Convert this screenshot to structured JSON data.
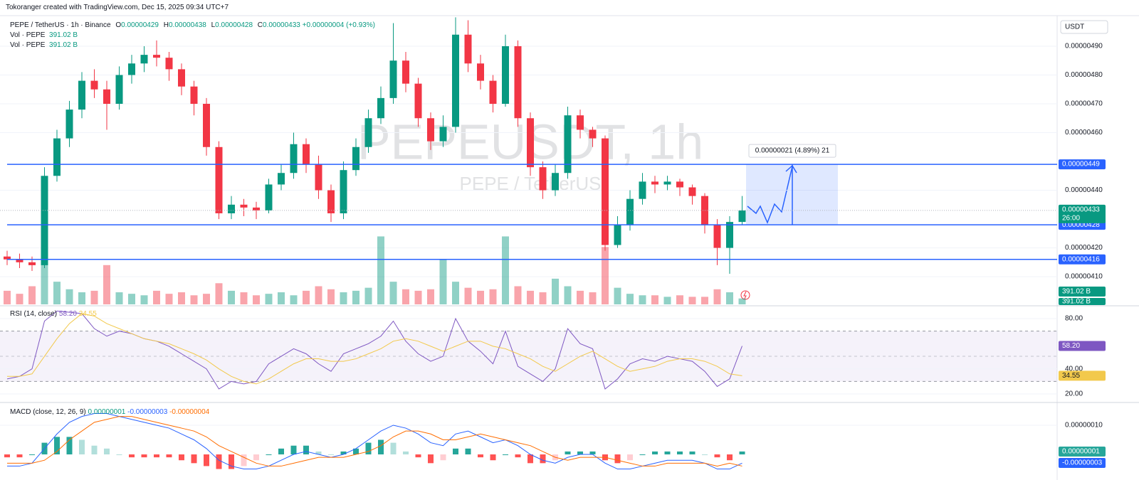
{
  "header": "Tokoranger created with TradingView.com, Dec 15, 2025 09:34 UTC+7",
  "chart_data": [
    {
      "type": "candlestick",
      "currency": "USDT",
      "symbol": "PEPE / TetherUS · 1h · Binance",
      "ohlc_legend": [
        {
          "key": "O",
          "value": "0.00000429"
        },
        {
          "key": "H",
          "value": "0.00000438"
        },
        {
          "key": "L",
          "value": "0.00000428"
        },
        {
          "key": "C",
          "value": "0.00000433"
        }
      ],
      "change": "+0.00000004 (+0.93%)",
      "watermark": {
        "title": "PEPEUSDT, 1h",
        "subtitle": "PEPE / TetherUS"
      },
      "up_color": "#089981",
      "down_color": "#f23645",
      "ylim": [
        4.004e-06,
        5.006e-06
      ],
      "yticks": [
        {
          "value": 4.9e-06,
          "label": "0.00000490"
        },
        {
          "value": 4.8e-06,
          "label": "0.00000480"
        },
        {
          "value": 4.7e-06,
          "label": "0.00000470"
        },
        {
          "value": 4.6e-06,
          "label": "0.00000460"
        },
        {
          "value": 4.4e-06,
          "label": "0.00000440"
        },
        {
          "value": 4.2e-06,
          "label": "0.00000420"
        },
        {
          "value": 4.1e-06,
          "label": "0.00000410"
        }
      ],
      "grid": true,
      "candles": [
        [
          4.17e-06,
          4.19e-06,
          4.14e-06,
          4.16e-06
        ],
        [
          4.16e-06,
          4.18e-06,
          4.13e-06,
          4.15e-06
        ],
        [
          4.15e-06,
          4.17e-06,
          4.12e-06,
          4.14e-06
        ],
        [
          4.14e-06,
          4.48e-06,
          4.13e-06,
          4.45e-06
        ],
        [
          4.45e-06,
          4.61e-06,
          4.43e-06,
          4.58e-06
        ],
        [
          4.58e-06,
          4.71e-06,
          4.55e-06,
          4.68e-06
        ],
        [
          4.68e-06,
          4.81e-06,
          4.65e-06,
          4.78e-06
        ],
        [
          4.78e-06,
          4.82e-06,
          4.72e-06,
          4.75e-06
        ],
        [
          4.75e-06,
          4.78e-06,
          4.61e-06,
          4.7e-06
        ],
        [
          4.7e-06,
          4.83e-06,
          4.68e-06,
          4.8e-06
        ],
        [
          4.8e-06,
          4.87e-06,
          4.77e-06,
          4.84e-06
        ],
        [
          4.84e-06,
          4.9e-06,
          4.81e-06,
          4.87e-06
        ],
        [
          4.87e-06,
          4.92e-06,
          4.83e-06,
          4.86e-06
        ],
        [
          4.86e-06,
          4.88e-06,
          4.78e-06,
          4.82e-06
        ],
        [
          4.82e-06,
          4.84e-06,
          4.73e-06,
          4.76e-06
        ],
        [
          4.76e-06,
          4.78e-06,
          4.66e-06,
          4.7e-06
        ],
        [
          4.7e-06,
          4.72e-06,
          4.52e-06,
          4.55e-06
        ],
        [
          4.55e-06,
          4.57e-06,
          4.3e-06,
          4.32e-06
        ],
        [
          4.32e-06,
          4.38e-06,
          4.3e-06,
          4.35e-06
        ],
        [
          4.35e-06,
          4.37e-06,
          4.31e-06,
          4.34e-06
        ],
        [
          4.34e-06,
          4.36e-06,
          4.3e-06,
          4.33e-06
        ],
        [
          4.33e-06,
          4.44e-06,
          4.32e-06,
          4.42e-06
        ],
        [
          4.42e-06,
          4.49e-06,
          4.4e-06,
          4.46e-06
        ],
        [
          4.46e-06,
          4.6e-06,
          4.44e-06,
          4.56e-06
        ],
        [
          4.56e-06,
          4.58e-06,
          4.46e-06,
          4.49e-06
        ],
        [
          4.49e-06,
          4.52e-06,
          4.37e-06,
          4.4e-06
        ],
        [
          4.4e-06,
          4.42e-06,
          4.29e-06,
          4.32e-06
        ],
        [
          4.32e-06,
          4.5e-06,
          4.3e-06,
          4.47e-06
        ],
        [
          4.47e-06,
          4.58e-06,
          4.45e-06,
          4.55e-06
        ],
        [
          4.55e-06,
          4.68e-06,
          4.53e-06,
          4.65e-06
        ],
        [
          4.65e-06,
          4.76e-06,
          4.63e-06,
          4.72e-06
        ],
        [
          4.72e-06,
          4.98e-06,
          4.7e-06,
          4.85e-06
        ],
        [
          4.85e-06,
          4.88e-06,
          4.74e-06,
          4.77e-06
        ],
        [
          4.77e-06,
          4.79e-06,
          4.62e-06,
          4.65e-06
        ],
        [
          4.65e-06,
          4.67e-06,
          4.54e-06,
          4.57e-06
        ],
        [
          4.57e-06,
          4.66e-06,
          4.55e-06,
          4.62e-06
        ],
        [
          4.62e-06,
          5e-06,
          4.6e-06,
          4.94e-06
        ],
        [
          4.94e-06,
          4.99e-06,
          4.81e-06,
          4.84e-06
        ],
        [
          4.84e-06,
          4.87e-06,
          4.75e-06,
          4.78e-06
        ],
        [
          4.78e-06,
          4.8e-06,
          4.67e-06,
          4.7e-06
        ],
        [
          4.7e-06,
          4.94e-06,
          4.69e-06,
          4.9e-06
        ],
        [
          4.9e-06,
          4.92e-06,
          4.62e-06,
          4.65e-06
        ],
        [
          4.65e-06,
          4.67e-06,
          4.45e-06,
          4.48e-06
        ],
        [
          4.48e-06,
          4.5e-06,
          4.37e-06,
          4.4e-06
        ],
        [
          4.4e-06,
          4.49e-06,
          4.38e-06,
          4.46e-06
        ],
        [
          4.46e-06,
          4.69e-06,
          4.44e-06,
          4.66e-06
        ],
        [
          4.66e-06,
          4.68e-06,
          4.58e-06,
          4.61e-06
        ],
        [
          4.61e-06,
          4.62e-06,
          4.55e-06,
          4.58e-06
        ],
        [
          4.58e-06,
          4.59e-06,
          4.19e-06,
          4.21e-06
        ],
        [
          4.21e-06,
          4.31e-06,
          4.2e-06,
          4.28e-06
        ],
        [
          4.28e-06,
          4.4e-06,
          4.26e-06,
          4.37e-06
        ],
        [
          4.37e-06,
          4.46e-06,
          4.35e-06,
          4.43e-06
        ],
        [
          4.43e-06,
          4.45e-06,
          4.39e-06,
          4.42e-06
        ],
        [
          4.42e-06,
          4.45e-06,
          4.4e-06,
          4.43e-06
        ],
        [
          4.43e-06,
          4.44e-06,
          4.38e-06,
          4.41e-06
        ],
        [
          4.41e-06,
          4.42e-06,
          4.35e-06,
          4.38e-06
        ],
        [
          4.38e-06,
          4.39e-06,
          4.25e-06,
          4.28e-06
        ],
        [
          4.28e-06,
          4.3e-06,
          4.14e-06,
          4.2e-06
        ],
        [
          4.2e-06,
          4.31e-06,
          4.11e-06,
          4.29e-06
        ],
        [
          4.29e-06,
          4.38e-06,
          4.28e-06,
          4.33e-06
        ]
      ],
      "hlines": [
        {
          "value": 4.49e-06,
          "label": "0.00000449"
        },
        {
          "value": 4.28e-06,
          "label": "0.00000428"
        },
        {
          "value": 4.16e-06,
          "label": "0.00000416"
        }
      ],
      "hline_color": "#2962ff",
      "last_price": {
        "value": 4.33e-06,
        "label": "0.00000433",
        "countdown": "26:00"
      },
      "measure": {
        "from": 4.28e-06,
        "to": 4.49e-06,
        "label": "0.00000021 (4.89%) 21"
      },
      "volume": {
        "ylim": [
          0,
          6500
        ],
        "legends": [
          {
            "name": "Vol · PEPE",
            "value": "391.02 B"
          },
          {
            "name": "Vol · PEPE",
            "value": "391.02 B"
          }
        ],
        "axis_labels": [
          "391.02 B",
          "391.02 B"
        ],
        "values": [
          900,
          700,
          1200,
          4000,
          1500,
          1000,
          800,
          900,
          2600,
          800,
          700,
          600,
          900,
          700,
          800,
          600,
          700,
          1400,
          900,
          800,
          600,
          700,
          800,
          600,
          900,
          1200,
          1000,
          800,
          900,
          1100,
          4500,
          1500,
          1000,
          900,
          1000,
          3000,
          1500,
          1100,
          900,
          1000,
          4500,
          1200,
          900,
          800,
          1700,
          1200,
          900,
          800,
          3800,
          1100,
          700,
          600,
          600,
          500,
          600,
          500,
          500,
          1000,
          800,
          391.02
        ]
      }
    },
    {
      "type": "line",
      "title": "RSI (14, close)",
      "ylim": [
        13.8,
        89.06
      ],
      "yticks": [
        {
          "value": 80,
          "label": "80.00"
        },
        {
          "value": 40,
          "label": "40.00"
        },
        {
          "value": 20,
          "label": "20.00"
        }
      ],
      "bands": [
        70,
        50,
        30
      ],
      "band_color": "#7e57c2",
      "series": [
        {
          "color": "#7e57c2",
          "last_label": "58.20",
          "values": [
            32,
            34,
            40,
            78,
            86,
            85,
            84,
            72,
            66,
            70,
            68,
            64,
            62,
            58,
            52,
            46,
            40,
            24,
            30,
            28,
            30,
            44,
            50,
            56,
            52,
            44,
            38,
            52,
            56,
            60,
            66,
            78,
            62,
            52,
            46,
            50,
            80,
            62,
            54,
            44,
            70,
            42,
            36,
            30,
            40,
            72,
            60,
            56,
            24,
            32,
            44,
            48,
            46,
            50,
            48,
            46,
            38,
            26,
            32,
            58.2
          ]
        },
        {
          "color": "#f2c94c",
          "last_label": "34.55",
          "values": [
            34,
            34,
            36,
            50,
            64,
            76,
            84,
            82,
            76,
            72,
            68,
            64,
            62,
            60,
            56,
            52,
            47,
            40,
            34,
            30,
            28,
            32,
            38,
            44,
            48,
            48,
            46,
            46,
            48,
            52,
            56,
            62,
            64,
            62,
            58,
            54,
            58,
            62,
            62,
            58,
            56,
            52,
            48,
            42,
            38,
            44,
            50,
            54,
            48,
            42,
            38,
            40,
            42,
            46,
            48,
            48,
            46,
            42,
            36,
            34.55
          ]
        }
      ]
    },
    {
      "type": "macd",
      "title": "MACD (close, 12, 26, 9)",
      "ylim": [
        -5.6e-08,
        1.73e-07
      ],
      "yticks": [
        {
          "value": 1e-07,
          "label": "0.00000010"
        }
      ],
      "histogram": {
        "last_label": "0.00000001",
        "colors": [
          "#26a69a",
          "#b2dfdb",
          "#ff5252",
          "#ffcdd2"
        ],
        "values": [
          -1e-08,
          -1e-08,
          0,
          4e-08,
          6e-08,
          6e-08,
          5e-08,
          3e-08,
          2e-08,
          0,
          -1e-08,
          -1e-08,
          -1e-08,
          -1e-08,
          -2e-08,
          -3e-08,
          -4e-08,
          -5e-08,
          -5e-08,
          -4e-08,
          -2e-08,
          0,
          2e-08,
          3e-08,
          3e-08,
          1e-08,
          0,
          1e-08,
          2e-08,
          4e-08,
          5e-08,
          4e-08,
          1e-08,
          -1e-08,
          -3e-08,
          -2e-08,
          2e-08,
          2e-08,
          -1e-08,
          -2e-08,
          0,
          -1e-08,
          -3e-08,
          -3e-08,
          -2e-08,
          1e-08,
          1e-08,
          1e-08,
          -2e-08,
          -3e-08,
          -2e-08,
          0,
          1e-08,
          1e-08,
          1e-08,
          1e-08,
          0,
          -1e-08,
          -2e-08,
          1e-08
        ]
      },
      "series": [
        {
          "color": "#2962ff",
          "last_label": "-0.00000003",
          "values": [
            -4e-08,
            -4e-08,
            -3e-08,
            2e-08,
            7e-08,
            1.1e-07,
            1.3e-07,
            1.4e-07,
            1.4e-07,
            1.3e-07,
            1.2e-07,
            1.1e-07,
            1e-07,
            9e-08,
            7e-08,
            5e-08,
            2e-08,
            -2e-08,
            -4e-08,
            -5e-08,
            -5e-08,
            -4e-08,
            -2e-08,
            0,
            1e-08,
            0,
            -1e-08,
            0,
            2e-08,
            5e-08,
            8e-08,
            1e-07,
            9e-08,
            7e-08,
            4e-08,
            3e-08,
            7e-08,
            8e-08,
            6e-08,
            4e-08,
            5e-08,
            3e-08,
            0,
            -2e-08,
            -3e-08,
            -1e-08,
            0,
            0,
            -3e-08,
            -5e-08,
            -5e-08,
            -4e-08,
            -3e-08,
            -2e-08,
            -2e-08,
            -2e-08,
            -3e-08,
            -5e-08,
            -5e-08,
            -3e-08
          ]
        },
        {
          "color": "#ff6d00",
          "last_label": "-0.00000004",
          "values": [
            -3e-08,
            -3e-08,
            -3e-08,
            -2e-08,
            1e-08,
            5e-08,
            8e-08,
            1.1e-07,
            1.2e-07,
            1.3e-07,
            1.3e-07,
            1.2e-07,
            1.1e-07,
            1e-07,
            9e-08,
            8e-08,
            6e-08,
            3e-08,
            1e-08,
            -1e-08,
            -3e-08,
            -4e-08,
            -4e-08,
            -3e-08,
            -2e-08,
            -1e-08,
            -1e-08,
            -1e-08,
            0,
            1e-08,
            3e-08,
            6e-08,
            8e-08,
            8e-08,
            7e-08,
            5e-08,
            5e-08,
            6e-08,
            7e-08,
            6e-08,
            5e-08,
            4e-08,
            3e-08,
            1e-08,
            -1e-08,
            -2e-08,
            -1e-08,
            -1e-08,
            -1e-08,
            -2e-08,
            -3e-08,
            -4e-08,
            -4e-08,
            -3e-08,
            -3e-08,
            -3e-08,
            -3e-08,
            -4e-08,
            -3e-08,
            -4e-08
          ]
        }
      ]
    }
  ]
}
